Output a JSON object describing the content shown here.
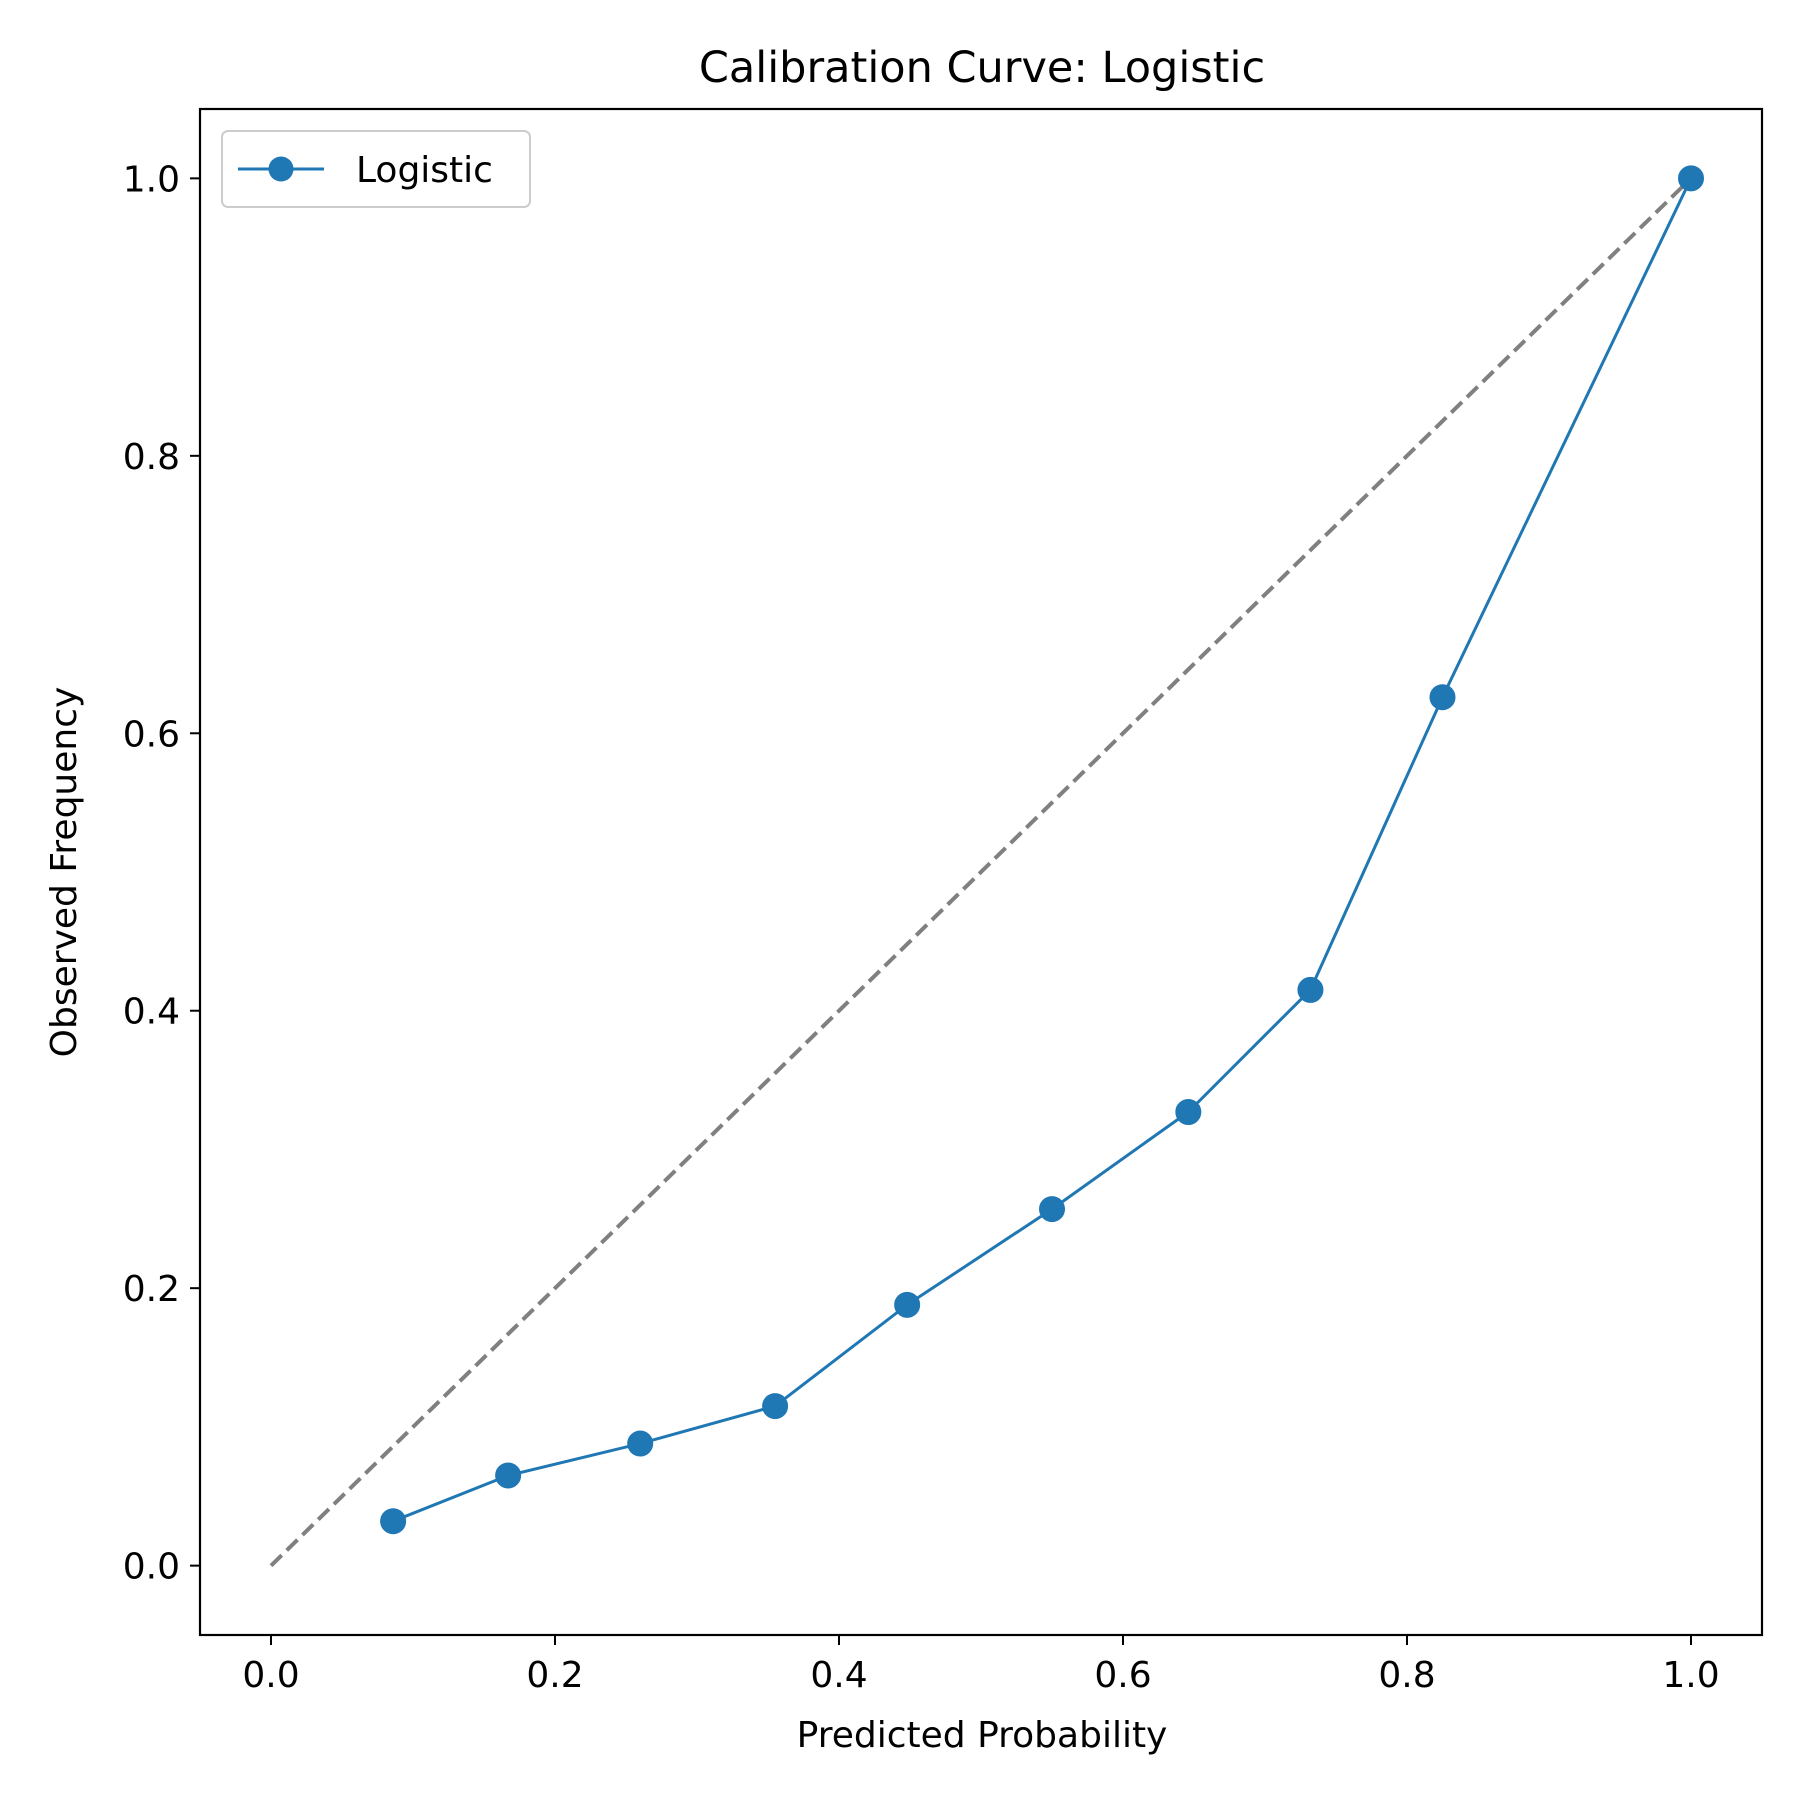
{
  "chart_data": {
    "type": "line",
    "title": "Calibration Curve: Logistic",
    "xlabel": "Predicted Probability",
    "ylabel": "Observed Frequency",
    "xlim": [
      -0.05,
      1.05
    ],
    "ylim": [
      -0.05,
      1.05
    ],
    "xticks": [
      0.0,
      0.2,
      0.4,
      0.6,
      0.8,
      1.0
    ],
    "xtick_labels": [
      "0.0",
      "0.2",
      "0.4",
      "0.6",
      "0.8",
      "1.0"
    ],
    "yticks": [
      0.0,
      0.2,
      0.4,
      0.6,
      0.8,
      1.0
    ],
    "ytick_labels": [
      "0.0",
      "0.2",
      "0.4",
      "0.6",
      "0.8",
      "1.0"
    ],
    "grid": false,
    "legend_position": "top-left",
    "series": [
      {
        "name": "Logistic",
        "color": "#1f77b4",
        "marker": "circle",
        "x": [
          0.086,
          0.167,
          0.26,
          0.355,
          0.448,
          0.55,
          0.646,
          0.732,
          0.825,
          1.0
        ],
        "y": [
          0.032,
          0.065,
          0.088,
          0.115,
          0.188,
          0.257,
          0.327,
          0.415,
          0.626,
          1.0
        ]
      }
    ],
    "reference_line": {
      "x": [
        0.0,
        1.0
      ],
      "y": [
        0.0,
        1.0
      ],
      "color": "#808080",
      "style": "dashed"
    }
  }
}
